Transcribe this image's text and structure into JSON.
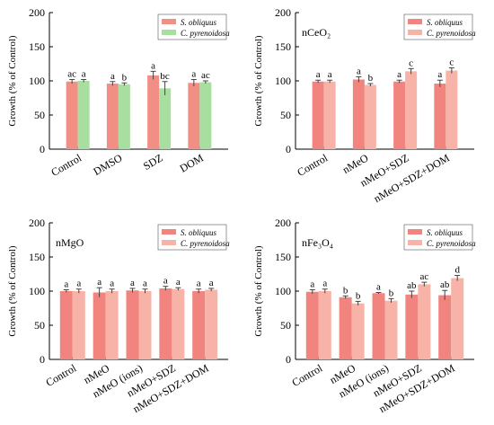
{
  "colors": {
    "s_obliquus": "#f2847f",
    "c_pyrenoidosa": "#f7b3a8",
    "s_obliquus_panel1": "#f28f85",
    "c_pyrenoidosa_panel1": "#a8dfa0",
    "axis": "#000000",
    "error_bar": "#444444"
  },
  "chart_data": [
    {
      "type": "bar",
      "panel_label": "",
      "ylabel": "Growth (% of Control)",
      "ylim": [
        0,
        200
      ],
      "yticks": [
        0,
        50,
        100,
        150,
        200
      ],
      "categories": [
        "Control",
        "DMSO",
        "SDZ",
        "DOM"
      ],
      "legend": {
        "placement": "top-right",
        "italic": true
      },
      "series": [
        {
          "name": "S. obliquus",
          "values": [
            99,
            96,
            108,
            97
          ],
          "errors": [
            3,
            3,
            6,
            5
          ],
          "letters": [
            "ac",
            "a",
            "a",
            "a"
          ]
        },
        {
          "name": "C. pyrenoidosa",
          "values": [
            100,
            95,
            89,
            98
          ],
          "errors": [
            2,
            2,
            10,
            2
          ],
          "letters": [
            "a",
            "b",
            "bc",
            "ac"
          ]
        }
      ]
    },
    {
      "type": "bar",
      "panel_label": "nCeO₂",
      "ylabel": "Growth (% of Control)",
      "ylim": [
        0,
        200
      ],
      "yticks": [
        0,
        50,
        100,
        150,
        200
      ],
      "categories": [
        "Control",
        "nMeO",
        "nMeO+SDZ",
        "nMeO+SDZ+DOM"
      ],
      "legend": {
        "placement": "top-right",
        "italic": true
      },
      "series": [
        {
          "name": "S. obliquus",
          "values": [
            99,
            102,
            99,
            96
          ],
          "errors": [
            2,
            4,
            2,
            5
          ],
          "letters": [
            "a",
            "a",
            "a",
            "a"
          ]
        },
        {
          "name": "C. pyrenoidosa",
          "values": [
            99,
            94,
            114,
            115
          ],
          "errors": [
            2,
            2,
            4,
            4
          ],
          "letters": [
            "a",
            "b",
            "c",
            "c"
          ]
        }
      ]
    },
    {
      "type": "bar",
      "panel_label": "nMgO",
      "ylabel": "Growth (% of Control)",
      "ylim": [
        0,
        200
      ],
      "yticks": [
        0,
        50,
        100,
        150,
        200
      ],
      "categories": [
        "Control",
        "nMeO",
        "nMeO (ions)",
        "nMeO+SDZ",
        "nMeO+SDZ+DOM"
      ],
      "legend": {
        "placement": "top-right",
        "italic": true
      },
      "series": [
        {
          "name": "S. obliquus",
          "values": [
            100,
            98,
            101,
            104,
            100
          ],
          "errors": [
            2,
            7,
            3,
            3,
            3
          ],
          "letters": [
            "a",
            "a",
            "a",
            "a",
            "a"
          ]
        },
        {
          "name": "C. pyrenoidosa",
          "values": [
            100,
            100,
            100,
            103,
            102
          ],
          "errors": [
            3,
            3,
            3,
            2,
            2
          ],
          "letters": [
            "a",
            "a",
            "a",
            "a",
            "a"
          ]
        }
      ]
    },
    {
      "type": "bar",
      "panel_label": "nFe₃O₄",
      "ylabel": "Growth (% of Control)",
      "ylim": [
        0,
        200
      ],
      "yticks": [
        0,
        50,
        100,
        150,
        200
      ],
      "categories": [
        "Control",
        "nMeO",
        "nMeO (ions)",
        "nMeO+SDZ",
        "nMeO+SDZ+DOM"
      ],
      "legend": {
        "placement": "top-right",
        "italic": true
      },
      "series": [
        {
          "name": "S. obliquus",
          "values": [
            99,
            91,
            97,
            95,
            94
          ],
          "errors": [
            3,
            2,
            1,
            5,
            7
          ],
          "letters": [
            "a",
            "b",
            "a",
            "ab",
            "ab"
          ]
        },
        {
          "name": "C. pyrenoidosa",
          "values": [
            100,
            82,
            86,
            110,
            119
          ],
          "errors": [
            3,
            3,
            3,
            3,
            4
          ],
          "letters": [
            "a",
            "b",
            "b",
            "ac",
            "d"
          ]
        }
      ]
    }
  ]
}
